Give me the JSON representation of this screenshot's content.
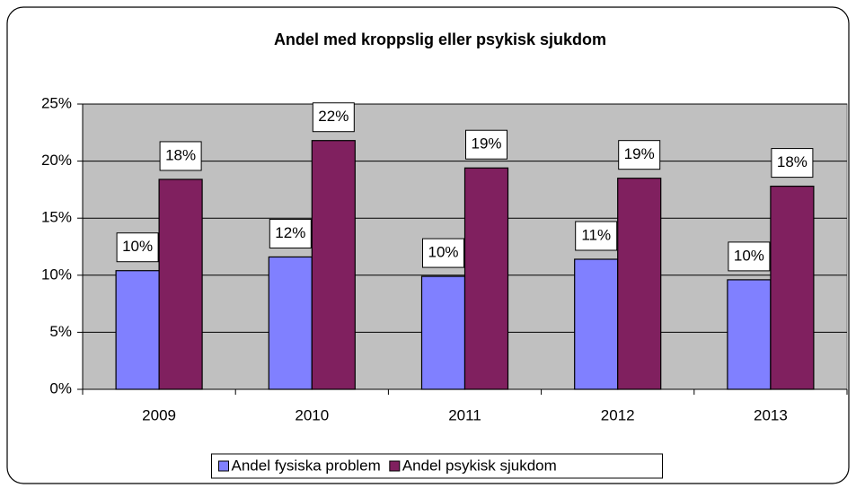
{
  "chart_data": {
    "type": "bar",
    "title": "Andel med kroppslig eller psykisk sjukdom",
    "categories": [
      "2009",
      "2010",
      "2011",
      "2012",
      "2013"
    ],
    "series": [
      {
        "name": "Andel fysiska problem",
        "color": "#8080ff",
        "values": [
          10.4,
          11.6,
          9.9,
          11.4,
          9.6
        ],
        "value_labels": [
          "10%",
          "12%",
          "10%",
          "11%",
          "10%"
        ]
      },
      {
        "name": "Andel psykisk sjukdom",
        "color": "#80205f",
        "values": [
          18.4,
          21.8,
          19.4,
          18.5,
          17.8
        ],
        "value_labels": [
          "18%",
          "22%",
          "19%",
          "19%",
          "18%"
        ]
      }
    ],
    "ylim": [
      0,
      25
    ],
    "yticks": [
      {
        "value": 0,
        "label": "0%"
      },
      {
        "value": 5,
        "label": "5%"
      },
      {
        "value": 10,
        "label": "10%"
      },
      {
        "value": 15,
        "label": "15%"
      },
      {
        "value": 20,
        "label": "20%"
      },
      {
        "value": 25,
        "label": "25%"
      }
    ],
    "grid": true,
    "legend": "bottom",
    "plot_background": "#c0c0c0"
  }
}
